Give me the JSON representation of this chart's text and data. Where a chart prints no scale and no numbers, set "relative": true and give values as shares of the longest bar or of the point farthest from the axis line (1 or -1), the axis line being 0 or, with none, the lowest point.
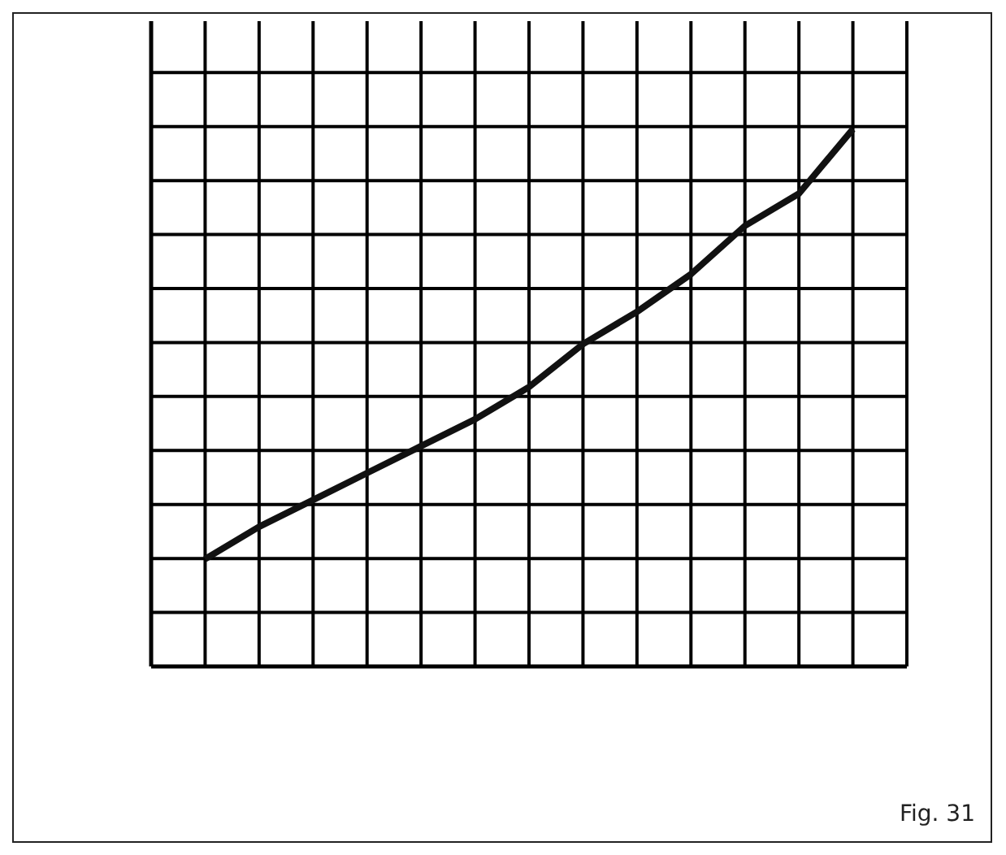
{
  "chart_data": {
    "type": "line",
    "relative": true,
    "grid": true,
    "tick_labels": false,
    "categories": [
      null,
      null,
      null,
      null,
      null,
      null,
      null,
      null,
      null,
      null,
      null,
      null,
      null,
      null,
      null
    ],
    "series": [
      {
        "color": "#111111",
        "values": [
          null,
          0.2,
          0.26,
          0.31,
          0.36,
          0.41,
          0.46,
          0.52,
          0.6,
          0.66,
          0.73,
          0.82,
          0.88,
          1,
          null
        ]
      }
    ],
    "annotations": [
      "Fig. 31"
    ]
  }
}
